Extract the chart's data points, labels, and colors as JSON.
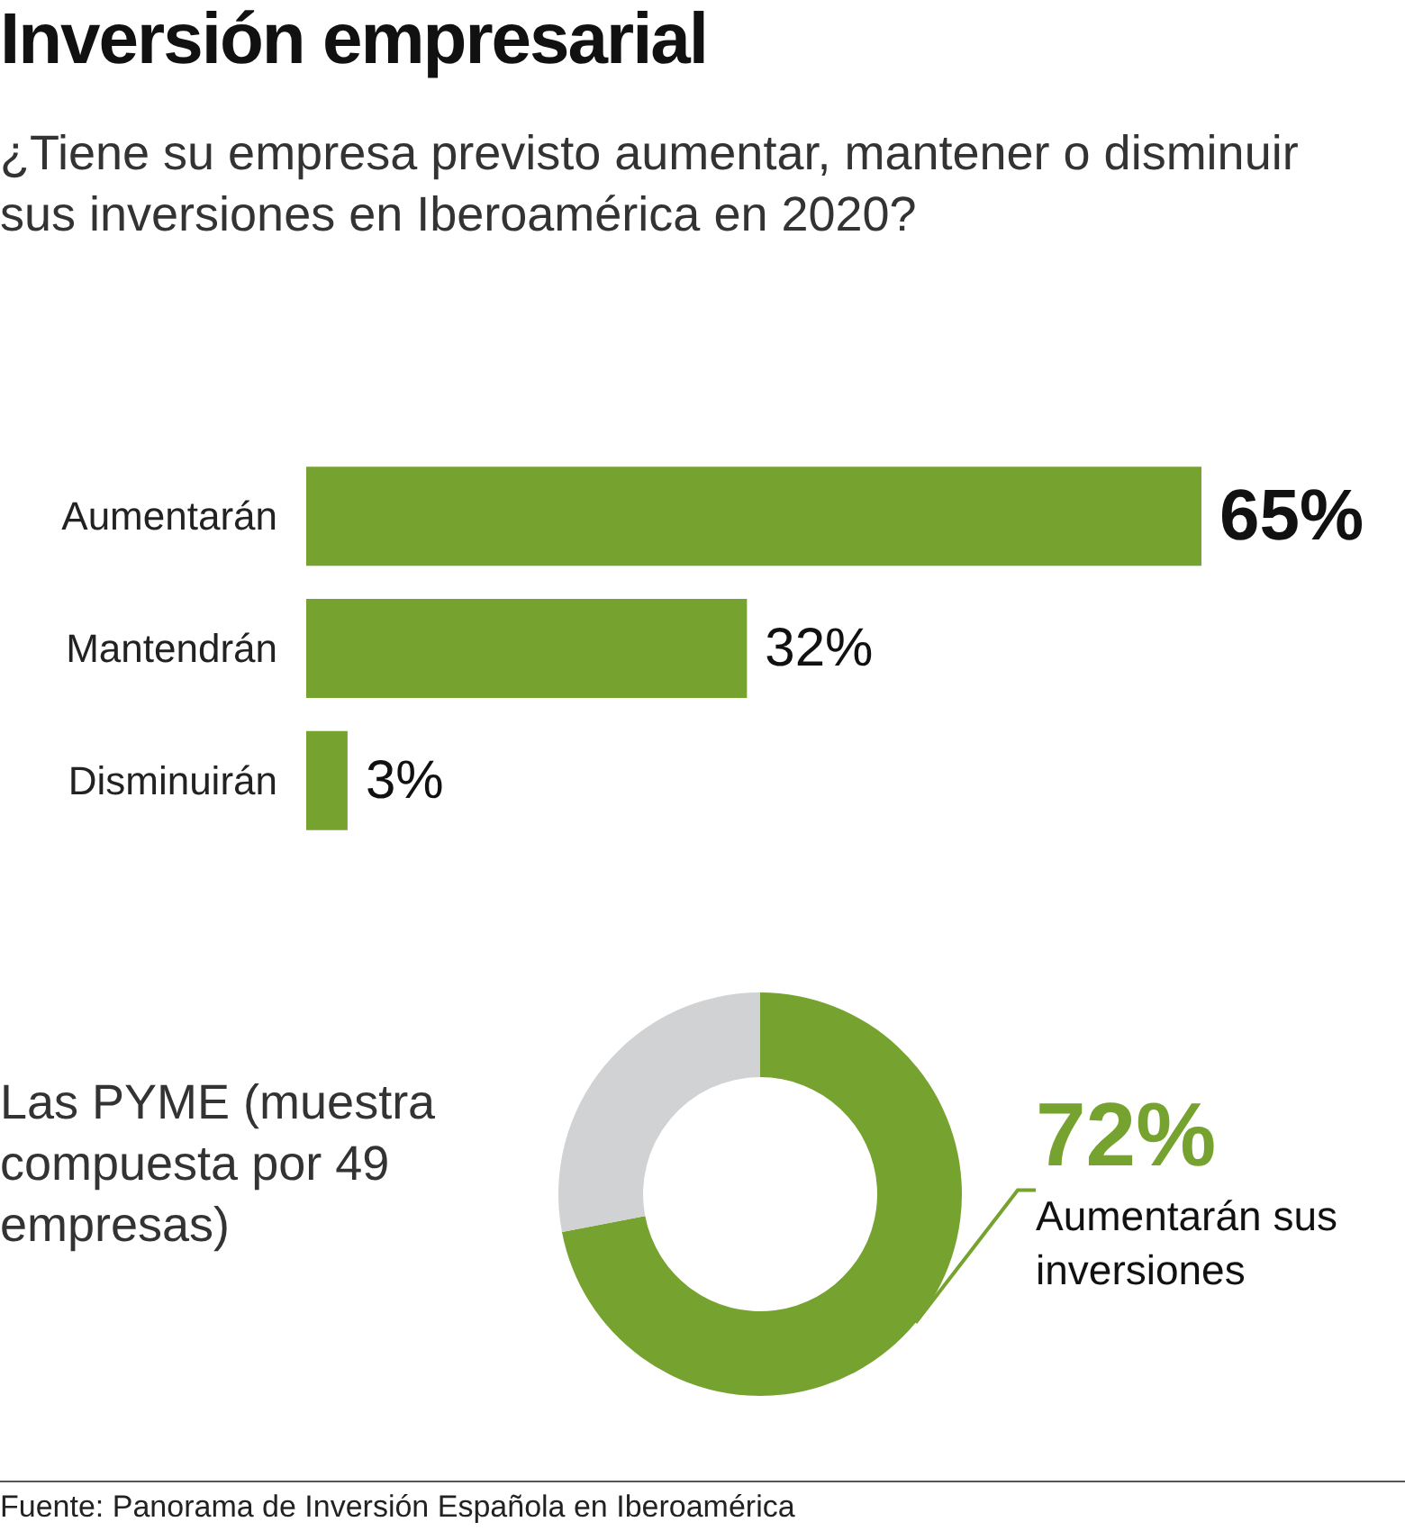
{
  "chart_data": [
    {
      "type": "bar",
      "title": "Inversión empresarial",
      "subtitle": "¿Tiene su empresa previsto aumentar, mantener o disminuir sus inversiones en Iberoamérica en 2020?",
      "orientation": "horizontal",
      "categories": [
        "Aumentarán",
        "Mantendrán",
        "Disminuirán"
      ],
      "values": [
        65,
        32,
        3
      ],
      "value_labels": [
        "65%",
        "32%",
        "3%"
      ],
      "color": "#76a22f"
    },
    {
      "type": "donut",
      "title": "Las PYME (muestra compuesta por 49 empresas)",
      "categories": [
        "Aumentarán sus inversiones",
        null
      ],
      "values": [
        72,
        28
      ],
      "colors": [
        "#76a22f",
        "#d1d2d4"
      ],
      "value_labels": [
        "72%",
        null
      ],
      "annotations": [
        "Fuente: Panorama de Inversión Española en Iberoamérica"
      ]
    }
  ]
}
